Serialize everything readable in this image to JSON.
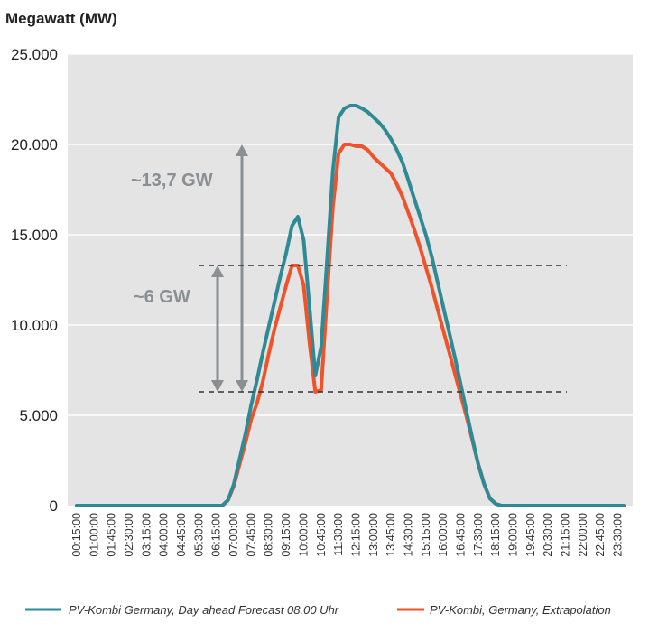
{
  "chart_data": {
    "type": "line",
    "ylabel": "Megawatt (MW)",
    "ylim": [
      0,
      25000
    ],
    "yticks": [
      0,
      5000,
      10000,
      15000,
      20000,
      25000
    ],
    "ytick_labels": [
      "0",
      "5.000",
      "10.000",
      "15.000",
      "20.000",
      "25.000"
    ],
    "grid": "horizontal",
    "legend_position": "bottom",
    "x_tick_labels": [
      "00:15:00",
      "01:00:00",
      "01:45:00",
      "02:30:00",
      "03:15:00",
      "04:00:00",
      "04:45:00",
      "05:30:00",
      "06:15:00",
      "07:00:00",
      "07:45:00",
      "08:30:00",
      "09:15:00",
      "10:00:00",
      "10:45:00",
      "11:30:00",
      "12:15:00",
      "13:00:00",
      "13:45:00",
      "14:30:00",
      "15:15:00",
      "16:00:00",
      "16:45:00",
      "17:30:00",
      "18:15:00",
      "19:00:00",
      "19:45:00",
      "20:30:00",
      "21:15:00",
      "22:00:00",
      "22:45:00",
      "23:30:00"
    ],
    "series": [
      {
        "name": "PV-Kombi Germany, Day ahead Forecast 08.00 Uhr",
        "color": "#2e8b95",
        "x": [
          "00:15",
          "06:15",
          "06:30",
          "06:45",
          "07:00",
          "07:15",
          "07:30",
          "07:45",
          "08:00",
          "08:15",
          "08:30",
          "08:45",
          "09:00",
          "09:15",
          "09:30",
          "09:45",
          "10:00",
          "10:15",
          "10:30",
          "10:45",
          "11:00",
          "11:15",
          "11:30",
          "11:45",
          "12:00",
          "12:15",
          "12:30",
          "12:45",
          "13:00",
          "13:15",
          "13:30",
          "13:45",
          "14:00",
          "14:15",
          "14:30",
          "14:45",
          "15:00",
          "15:15",
          "15:30",
          "15:45",
          "16:00",
          "16:15",
          "16:30",
          "16:45",
          "17:00",
          "17:15",
          "17:30",
          "17:45",
          "18:00",
          "18:15",
          "18:30",
          "18:45",
          "23:45"
        ],
        "values": [
          0,
          0,
          0,
          300,
          1200,
          2600,
          4000,
          5600,
          7000,
          8500,
          9900,
          11300,
          12700,
          14000,
          15500,
          16000,
          14700,
          11000,
          7200,
          8800,
          13500,
          18500,
          21500,
          22000,
          22150,
          22150,
          22000,
          21800,
          21500,
          21200,
          20800,
          20300,
          19700,
          19000,
          18000,
          17000,
          16000,
          15000,
          13800,
          12400,
          11000,
          9600,
          8200,
          6700,
          5200,
          3700,
          2300,
          1200,
          400,
          100,
          0,
          0,
          0
        ]
      },
      {
        "name": "PV-Kombi, Germany, Extrapolation",
        "color": "#f0532a",
        "x": [
          "00:15",
          "06:15",
          "06:30",
          "06:45",
          "07:00",
          "07:15",
          "07:30",
          "07:45",
          "08:00",
          "08:15",
          "08:30",
          "08:45",
          "09:00",
          "09:15",
          "09:30",
          "09:45",
          "10:00",
          "10:15",
          "10:30",
          "10:45",
          "11:00",
          "11:15",
          "11:30",
          "11:45",
          "12:00",
          "12:15",
          "12:30",
          "12:45",
          "13:00",
          "13:15",
          "13:30",
          "13:45",
          "14:00",
          "14:15",
          "14:30",
          "14:45",
          "15:00",
          "15:15",
          "15:30",
          "15:45",
          "16:00",
          "16:15",
          "16:30",
          "16:45",
          "17:00",
          "17:15",
          "17:30",
          "17:45",
          "18:00",
          "18:15",
          "18:30",
          "18:45",
          "23:45"
        ],
        "values": [
          0,
          0,
          0,
          300,
          1100,
          2300,
          3500,
          4800,
          5700,
          6900,
          8400,
          9800,
          11000,
          12200,
          13300,
          13300,
          12200,
          9000,
          6300,
          6400,
          11500,
          16500,
          19500,
          20000,
          20000,
          19900,
          19900,
          19700,
          19300,
          19000,
          18700,
          18400,
          17800,
          17100,
          16200,
          15300,
          14300,
          13200,
          12100,
          10900,
          9700,
          8500,
          7300,
          6100,
          4900,
          3600,
          2300,
          1200,
          400,
          100,
          0,
          0,
          0
        ]
      }
    ],
    "annotations": {
      "reference_lines": [
        13300,
        6300
      ],
      "arrows": [
        {
          "label": "~13,7 GW",
          "from": 6300,
          "to": 20000
        },
        {
          "label": "~6 GW",
          "from": 6300,
          "to": 13300
        }
      ]
    }
  }
}
